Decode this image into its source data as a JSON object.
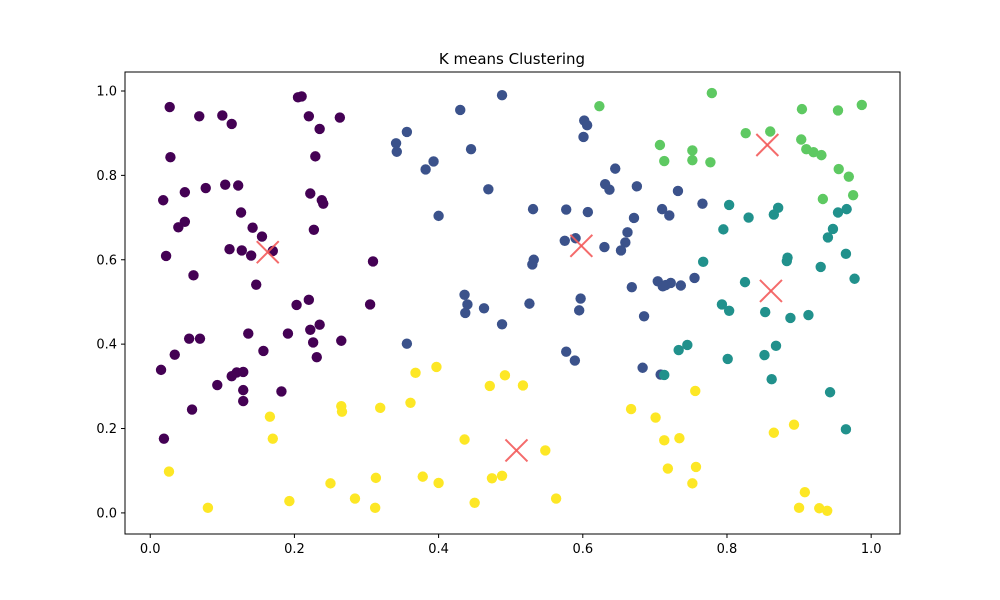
{
  "chart_data": {
    "type": "scatter",
    "title": "K means Clustering",
    "xlabel": "",
    "ylabel": "",
    "xlim": [
      -0.035,
      1.04
    ],
    "ylim": [
      -0.05,
      1.045
    ],
    "xticks": [
      0.0,
      0.2,
      0.4,
      0.6,
      0.8,
      1.0
    ],
    "yticks": [
      0.0,
      0.2,
      0.4,
      0.6,
      0.8,
      1.0
    ],
    "xtick_labels": [
      "0.0",
      "0.2",
      "0.4",
      "0.6",
      "0.8",
      "1.0"
    ],
    "ytick_labels": [
      "0.0",
      "0.2",
      "0.4",
      "0.6",
      "0.8",
      "1.0"
    ],
    "grid": false,
    "legend": false,
    "series": [
      {
        "color": "#440154",
        "points": [
          [
            0.027,
            0.962
          ],
          [
            0.068,
            0.94
          ],
          [
            0.1,
            0.942
          ],
          [
            0.113,
            0.922
          ],
          [
            0.205,
            0.985
          ],
          [
            0.21,
            0.987
          ],
          [
            0.22,
            0.94
          ],
          [
            0.235,
            0.91
          ],
          [
            0.263,
            0.937
          ],
          [
            0.028,
            0.843
          ],
          [
            0.229,
            0.845
          ],
          [
            0.077,
            0.77
          ],
          [
            0.104,
            0.778
          ],
          [
            0.122,
            0.776
          ],
          [
            0.048,
            0.76
          ],
          [
            0.222,
            0.757
          ],
          [
            0.238,
            0.741
          ],
          [
            0.24,
            0.733
          ],
          [
            0.018,
            0.741
          ],
          [
            0.126,
            0.712
          ],
          [
            0.048,
            0.69
          ],
          [
            0.039,
            0.677
          ],
          [
            0.142,
            0.676
          ],
          [
            0.227,
            0.671
          ],
          [
            0.155,
            0.655
          ],
          [
            0.11,
            0.625
          ],
          [
            0.127,
            0.622
          ],
          [
            0.17,
            0.621
          ],
          [
            0.14,
            0.61
          ],
          [
            0.022,
            0.609
          ],
          [
            0.06,
            0.563
          ],
          [
            0.147,
            0.541
          ],
          [
            0.22,
            0.505
          ],
          [
            0.203,
            0.493
          ],
          [
            0.305,
            0.494
          ],
          [
            0.309,
            0.596
          ],
          [
            0.136,
            0.425
          ],
          [
            0.191,
            0.425
          ],
          [
            0.222,
            0.434
          ],
          [
            0.235,
            0.446
          ],
          [
            0.265,
            0.408
          ],
          [
            0.054,
            0.413
          ],
          [
            0.069,
            0.413
          ],
          [
            0.226,
            0.404
          ],
          [
            0.157,
            0.384
          ],
          [
            0.034,
            0.375
          ],
          [
            0.231,
            0.369
          ],
          [
            0.015,
            0.339
          ],
          [
            0.12,
            0.333
          ],
          [
            0.129,
            0.334
          ],
          [
            0.113,
            0.324
          ],
          [
            0.093,
            0.303
          ],
          [
            0.129,
            0.291
          ],
          [
            0.182,
            0.288
          ],
          [
            0.129,
            0.265
          ],
          [
            0.058,
            0.245
          ],
          [
            0.019,
            0.176
          ]
        ]
      },
      {
        "color": "#3b528b",
        "points": [
          [
            0.488,
            0.99
          ],
          [
            0.43,
            0.955
          ],
          [
            0.602,
            0.93
          ],
          [
            0.606,
            0.919
          ],
          [
            0.356,
            0.903
          ],
          [
            0.601,
            0.891
          ],
          [
            0.341,
            0.876
          ],
          [
            0.342,
            0.856
          ],
          [
            0.445,
            0.862
          ],
          [
            0.393,
            0.833
          ],
          [
            0.382,
            0.814
          ],
          [
            0.645,
            0.816
          ],
          [
            0.631,
            0.779
          ],
          [
            0.637,
            0.766
          ],
          [
            0.675,
            0.774
          ],
          [
            0.469,
            0.767
          ],
          [
            0.732,
            0.763
          ],
          [
            0.766,
            0.733
          ],
          [
            0.531,
            0.72
          ],
          [
            0.577,
            0.719
          ],
          [
            0.607,
            0.713
          ],
          [
            0.71,
            0.72
          ],
          [
            0.72,
            0.705
          ],
          [
            0.4,
            0.704
          ],
          [
            0.671,
            0.699
          ],
          [
            0.662,
            0.665
          ],
          [
            0.575,
            0.645
          ],
          [
            0.59,
            0.651
          ],
          [
            0.659,
            0.641
          ],
          [
            0.653,
            0.622
          ],
          [
            0.63,
            0.63
          ],
          [
            0.532,
            0.6
          ],
          [
            0.53,
            0.589
          ],
          [
            0.704,
            0.549
          ],
          [
            0.722,
            0.545
          ],
          [
            0.755,
            0.557
          ],
          [
            0.715,
            0.54
          ],
          [
            0.711,
            0.537
          ],
          [
            0.736,
            0.539
          ],
          [
            0.668,
            0.535
          ],
          [
            0.436,
            0.517
          ],
          [
            0.44,
            0.494
          ],
          [
            0.597,
            0.508
          ],
          [
            0.526,
            0.496
          ],
          [
            0.463,
            0.485
          ],
          [
            0.595,
            0.48
          ],
          [
            0.437,
            0.474
          ],
          [
            0.685,
            0.466
          ],
          [
            0.488,
            0.447
          ],
          [
            0.356,
            0.401
          ],
          [
            0.577,
            0.382
          ],
          [
            0.589,
            0.361
          ],
          [
            0.683,
            0.344
          ],
          [
            0.708,
            0.328
          ]
        ]
      },
      {
        "color": "#21918c",
        "points": [
          [
            0.803,
            0.73
          ],
          [
            0.871,
            0.723
          ],
          [
            0.83,
            0.7
          ],
          [
            0.865,
            0.707
          ],
          [
            0.966,
            0.72
          ],
          [
            0.954,
            0.712
          ],
          [
            0.947,
            0.673
          ],
          [
            0.94,
            0.653
          ],
          [
            0.795,
            0.672
          ],
          [
            0.884,
            0.605
          ],
          [
            0.883,
            0.597
          ],
          [
            0.965,
            0.614
          ],
          [
            0.767,
            0.595
          ],
          [
            0.93,
            0.583
          ],
          [
            0.825,
            0.547
          ],
          [
            0.977,
            0.555
          ],
          [
            0.793,
            0.494
          ],
          [
            0.803,
            0.479
          ],
          [
            0.853,
            0.476
          ],
          [
            0.888,
            0.462
          ],
          [
            0.913,
            0.469
          ],
          [
            0.745,
            0.398
          ],
          [
            0.733,
            0.386
          ],
          [
            0.868,
            0.396
          ],
          [
            0.852,
            0.374
          ],
          [
            0.801,
            0.365
          ],
          [
            0.713,
            0.327
          ],
          [
            0.862,
            0.317
          ],
          [
            0.943,
            0.286
          ],
          [
            0.965,
            0.198
          ]
        ]
      },
      {
        "color": "#5ec962",
        "points": [
          [
            0.779,
            0.995
          ],
          [
            0.623,
            0.964
          ],
          [
            0.904,
            0.957
          ],
          [
            0.954,
            0.954
          ],
          [
            0.987,
            0.967
          ],
          [
            0.86,
            0.904
          ],
          [
            0.826,
            0.9
          ],
          [
            0.903,
            0.885
          ],
          [
            0.707,
            0.872
          ],
          [
            0.91,
            0.862
          ],
          [
            0.92,
            0.855
          ],
          [
            0.931,
            0.848
          ],
          [
            0.752,
            0.859
          ],
          [
            0.752,
            0.836
          ],
          [
            0.713,
            0.834
          ],
          [
            0.777,
            0.831
          ],
          [
            0.955,
            0.815
          ],
          [
            0.969,
            0.797
          ],
          [
            0.975,
            0.753
          ],
          [
            0.933,
            0.744
          ]
        ]
      },
      {
        "color": "#fde725",
        "points": [
          [
            0.397,
            0.346
          ],
          [
            0.368,
            0.332
          ],
          [
            0.492,
            0.326
          ],
          [
            0.471,
            0.301
          ],
          [
            0.517,
            0.302
          ],
          [
            0.756,
            0.289
          ],
          [
            0.361,
            0.261
          ],
          [
            0.265,
            0.253
          ],
          [
            0.319,
            0.249
          ],
          [
            0.266,
            0.24
          ],
          [
            0.667,
            0.246
          ],
          [
            0.166,
            0.228
          ],
          [
            0.701,
            0.226
          ],
          [
            0.893,
            0.209
          ],
          [
            0.865,
            0.19
          ],
          [
            0.17,
            0.176
          ],
          [
            0.436,
            0.174
          ],
          [
            0.734,
            0.177
          ],
          [
            0.713,
            0.172
          ],
          [
            0.548,
            0.148
          ],
          [
            0.757,
            0.109
          ],
          [
            0.718,
            0.105
          ],
          [
            0.026,
            0.098
          ],
          [
            0.378,
            0.086
          ],
          [
            0.313,
            0.083
          ],
          [
            0.474,
            0.082
          ],
          [
            0.488,
            0.088
          ],
          [
            0.25,
            0.07
          ],
          [
            0.4,
            0.071
          ],
          [
            0.752,
            0.07
          ],
          [
            0.908,
            0.049
          ],
          [
            0.284,
            0.034
          ],
          [
            0.563,
            0.034
          ],
          [
            0.193,
            0.028
          ],
          [
            0.45,
            0.024
          ],
          [
            0.08,
            0.012
          ],
          [
            0.312,
            0.012
          ],
          [
            0.9,
            0.012
          ],
          [
            0.928,
            0.011
          ],
          [
            0.939,
            0.005
          ]
        ]
      }
    ],
    "centroids": {
      "color": "#f35b5b",
      "marker": "x",
      "points": [
        [
          0.163,
          0.618
        ],
        [
          0.598,
          0.633
        ],
        [
          0.861,
          0.526
        ],
        [
          0.856,
          0.872
        ],
        [
          0.508,
          0.148
        ]
      ]
    }
  }
}
